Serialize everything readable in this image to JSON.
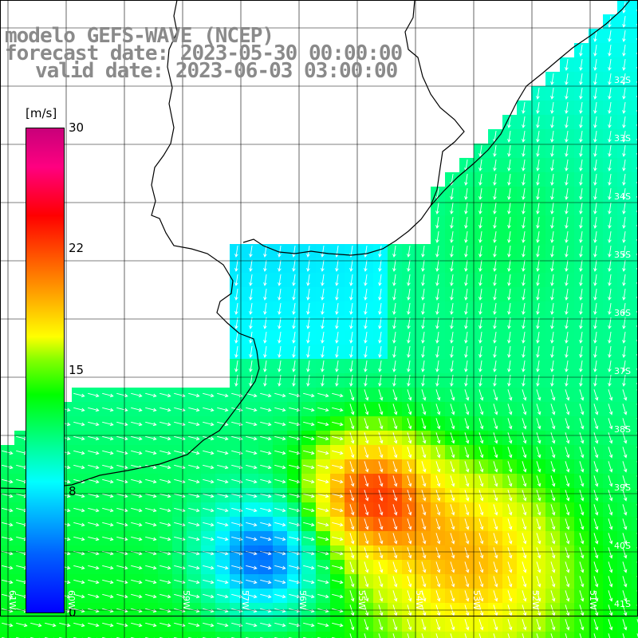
{
  "title": {
    "line1": "modelo GEFS-WAVE (NCEP)",
    "line2": "forecast date: 2023-05-30 00:00:00",
    "line3": "valid date: 2023-06-03 03:00:00"
  },
  "colorbar": {
    "unit": "[m/s]",
    "ticks": [
      "30",
      "22",
      "15",
      "8",
      "0"
    ],
    "tick_values": [
      30,
      22,
      15,
      8,
      0
    ],
    "range": [
      0,
      30
    ]
  },
  "lat_labels": [
    "32S",
    "33S",
    "34S",
    "35S",
    "36S",
    "37S",
    "38S",
    "39S",
    "40S",
    "41S"
  ],
  "lon_labels": [
    "61W",
    "60W",
    "59W",
    "57W",
    "56W",
    "55W",
    "54W",
    "53W",
    "52W",
    "51W"
  ],
  "colors": {
    "land": "#ffffff",
    "grid": "#000000",
    "arrow": "#ffffff",
    "coast": "#000000",
    "title": "#8a8a8a"
  }
}
